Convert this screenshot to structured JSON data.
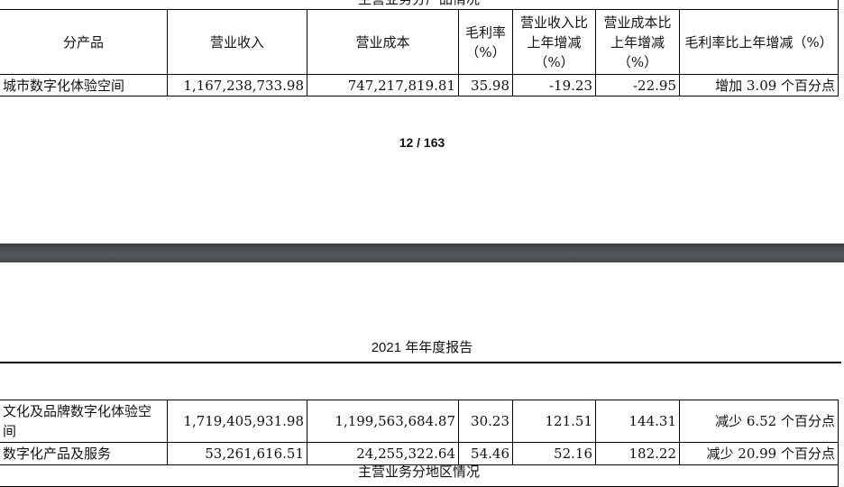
{
  "page1": {
    "table_title": "主营业务分产品情况",
    "headers": [
      "分产品",
      "营业收入",
      "营业成本",
      "毛利率（%）",
      "营业收入比上年增减（%）",
      "营业成本比上年增减（%）",
      "毛利率比上年增减（%）"
    ],
    "rows": [
      [
        "城市数字化体验空间",
        "1,167,238,733.98",
        "747,217,819.81",
        "35.98",
        "-19.23",
        "-22.95",
        "增加 3.09 个百分点"
      ]
    ]
  },
  "page_indicator": "12 / 163",
  "page2": {
    "header": "2021 年年度报告",
    "rows": [
      [
        "文化及品牌数字化体验空间",
        "1,719,405,931.98",
        "1,199,563,684.87",
        "30.23",
        "121.51",
        "144.31",
        "减少 6.52 个百分点"
      ],
      [
        "数字化产品及服务",
        "53,261,616.51",
        "24,255,322.64",
        "54.46",
        "52.16",
        "182.22",
        "减少 20.99 个百分点"
      ]
    ],
    "next_table_title": "主营业务分地区情况"
  }
}
